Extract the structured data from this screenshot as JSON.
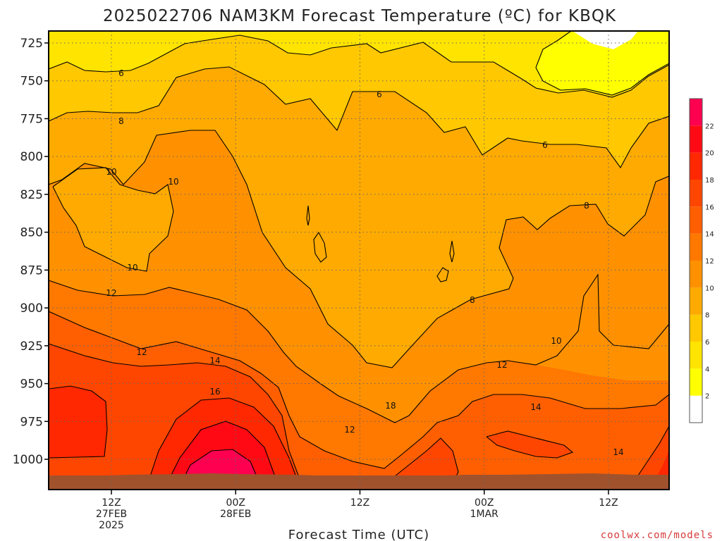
{
  "title": "2025022706 NAM3KM Forecast Temperature (ºC) for KBQK",
  "credit": "coolwx.com/models",
  "chart_data": {
    "type": "heatmap",
    "title": "2025022706 NAM3KM Forecast Temperature (ºC) for KBQK",
    "xlabel": "Forecast Time (UTC)",
    "ylabel": "",
    "y_scale": "pressure (hPa), inverted",
    "y_ticks": [
      725,
      750,
      775,
      800,
      825,
      850,
      875,
      900,
      925,
      950,
      975,
      1000
    ],
    "x_ticks": [
      {
        "lines": [
          "12Z",
          "27FEB",
          "2025"
        ]
      },
      {
        "lines": [
          "00Z",
          "28FEB"
        ]
      },
      {
        "lines": [
          "12Z"
        ]
      },
      {
        "lines": [
          "00Z",
          "1MAR"
        ]
      },
      {
        "lines": [
          "12Z"
        ]
      }
    ],
    "grid": true,
    "colorbar": {
      "placement": "right",
      "levels": [
        0,
        2,
        4,
        6,
        8,
        10,
        12,
        14,
        16,
        18,
        20,
        22,
        24
      ],
      "labels": [
        "2",
        "4",
        "6",
        "8",
        "10",
        "12",
        "14",
        "16",
        "18",
        "20",
        "22"
      ],
      "colors": [
        "#ffffff",
        "#ffff00",
        "#ffe400",
        "#ffc800",
        "#ffaa00",
        "#ff9100",
        "#ff7800",
        "#ff5f00",
        "#ff4600",
        "#ff2800",
        "#ff0a14",
        "#ff0050"
      ]
    },
    "contour_labels": [
      "6",
      "6",
      "6",
      "8",
      "8",
      "8",
      "10",
      "10",
      "10",
      "10",
      "12",
      "12",
      "12",
      "12",
      "14",
      "14",
      "14",
      "16",
      "18"
    ]
  }
}
